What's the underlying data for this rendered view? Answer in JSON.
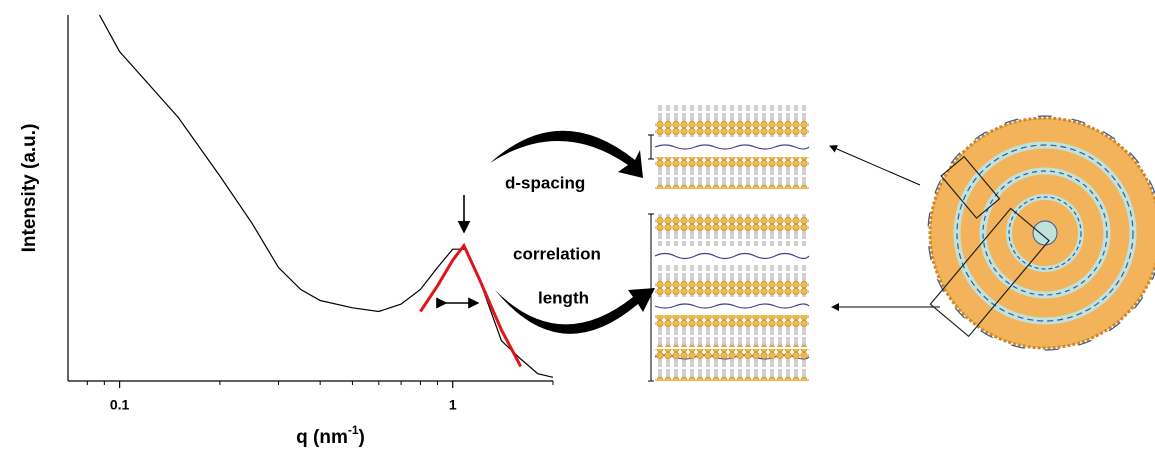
{
  "chart_data": {
    "type": "line",
    "x_scale": "log",
    "y_label": "Intensity (a.u.)",
    "x_label": [
      "q (nm",
      "-1",
      ")"
    ],
    "xlim": [
      0.07,
      2
    ],
    "ylim": [
      0,
      100
    ],
    "xticks": [
      0.1,
      1
    ],
    "xminorticks": [
      0.08,
      0.09,
      0.2,
      0.3,
      0.4,
      0.5,
      0.6,
      0.7,
      0.8,
      0.9,
      2
    ],
    "series": [
      {
        "color": "#000000",
        "x": [
          0.087,
          0.1,
          0.15,
          0.2,
          0.25,
          0.3,
          0.35,
          0.4,
          0.5,
          0.6,
          0.7,
          0.8,
          0.9,
          1.0,
          1.1,
          1.2,
          1.4,
          1.6,
          1.8,
          2
        ],
        "values": [
          100,
          90,
          72,
          56,
          43,
          31,
          25,
          22,
          20,
          19,
          21,
          25,
          31,
          36,
          36,
          28,
          11,
          6,
          2,
          1
        ]
      },
      {
        "color": "#e0151b",
        "x": [
          0.8,
          0.9,
          1.0,
          1.08,
          1.2,
          1.4,
          1.6
        ],
        "values": [
          19,
          26,
          33,
          37,
          28,
          14,
          4
        ]
      }
    ],
    "annotations": [
      "d-spacing",
      "correlation",
      "length"
    ]
  }
}
